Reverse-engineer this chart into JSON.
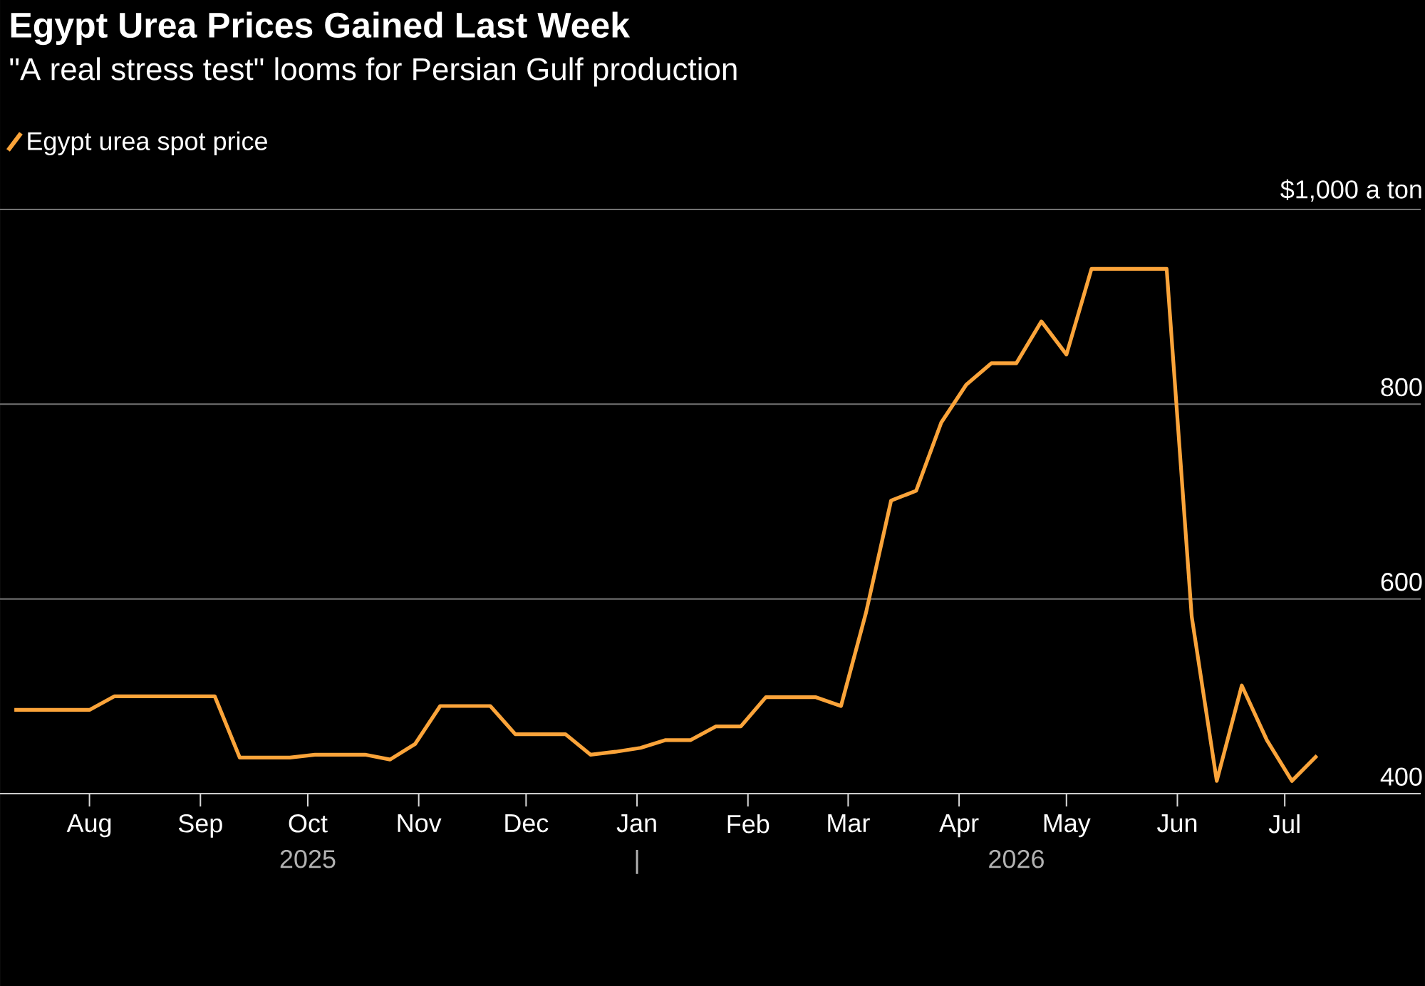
{
  "chart_data": {
    "type": "line",
    "title": "Egypt Urea Prices Gained Last Week",
    "subtitle": "\"A real stress test\" looms for Persian Gulf production",
    "x": [
      "2025-07-11",
      "2025-07-18",
      "2025-07-25",
      "2025-08-01",
      "2025-08-08",
      "2025-08-15",
      "2025-08-22",
      "2025-08-29",
      "2025-09-05",
      "2025-09-12",
      "2025-09-19",
      "2025-09-26",
      "2025-10-03",
      "2025-10-10",
      "2025-10-17",
      "2025-10-24",
      "2025-10-31",
      "2025-11-07",
      "2025-11-14",
      "2025-11-21",
      "2025-11-28",
      "2025-12-05",
      "2025-12-12",
      "2025-12-19",
      "2025-12-26",
      "2026-01-02",
      "2026-01-09",
      "2026-01-16",
      "2026-01-23",
      "2026-01-30",
      "2026-02-06",
      "2026-02-13",
      "2026-02-20",
      "2026-02-27",
      "2026-03-06",
      "2026-03-13",
      "2026-03-20",
      "2026-03-27",
      "2026-04-03",
      "2026-04-10",
      "2026-04-17",
      "2026-04-24",
      "2026-05-01",
      "2026-05-08",
      "2026-05-15",
      "2026-05-22",
      "2026-05-29",
      "2026-06-05",
      "2026-06-12",
      "2026-06-19",
      "2026-06-26",
      "2026-07-03",
      "2026-07-10"
    ],
    "series": [
      {
        "name": "Egypt urea spot price",
        "color": "#fba43a",
        "values": [
          486,
          486,
          486,
          486,
          500,
          500,
          500,
          500,
          500,
          437,
          437,
          437,
          440,
          440,
          440,
          435,
          451,
          490,
          490,
          490,
          461,
          461,
          461,
          440,
          443,
          447,
          455,
          455,
          469,
          469,
          499,
          499,
          499,
          490,
          586,
          701,
          711,
          781,
          820,
          842,
          842,
          885,
          851,
          939,
          939,
          939,
          939,
          582,
          413,
          511,
          455,
          413,
          439
        ]
      }
    ],
    "xlim": [
      "2025-07-07",
      "2026-08-08"
    ],
    "xticks": [
      {
        "value": "2025-08-01",
        "label": "Aug"
      },
      {
        "value": "2025-09-01",
        "label": "Sep"
      },
      {
        "value": "2025-10-01",
        "label": "Oct"
      },
      {
        "value": "2025-11-01",
        "label": "Nov"
      },
      {
        "value": "2025-12-01",
        "label": "Dec"
      },
      {
        "value": "2026-01-01",
        "label": "Jan"
      },
      {
        "value": "2026-02-01",
        "label": "Feb"
      },
      {
        "value": "2026-03-01",
        "label": "Mar"
      },
      {
        "value": "2026-04-01",
        "label": "Apr"
      },
      {
        "value": "2026-05-01",
        "label": "May"
      },
      {
        "value": "2026-06-01",
        "label": "Jun"
      },
      {
        "value": "2026-07-01",
        "label": "Jul"
      }
    ],
    "ylim": [
      400,
      1000
    ],
    "yticks": [
      400,
      600,
      800,
      {
        "value": 1000,
        "label": "$1,000 a ton"
      }
    ],
    "annotations": [
      "2025",
      "|",
      "2026"
    ],
    "grid": "y",
    "legend": "top left",
    "marker": "none",
    "line_style": "solid"
  }
}
